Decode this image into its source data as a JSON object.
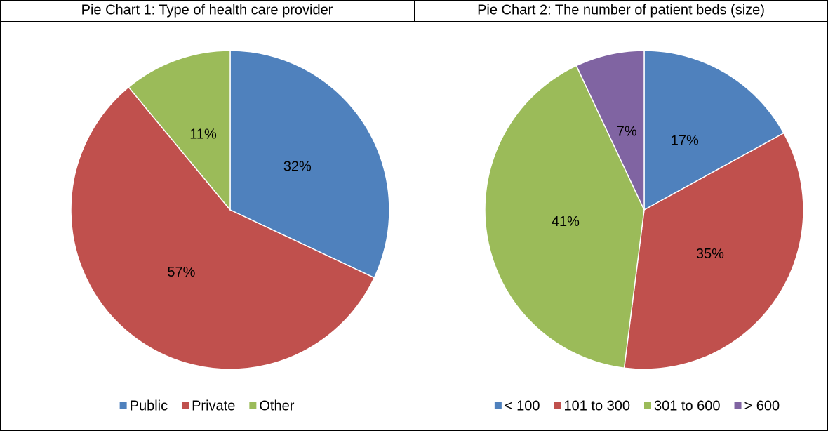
{
  "chart_data": [
    {
      "type": "pie",
      "title": "Pie Chart 1: Type of health care provider",
      "categories": [
        "Public",
        "Private",
        "Other"
      ],
      "values": [
        32,
        57,
        11
      ],
      "value_labels": [
        "32%",
        "57%",
        "11%"
      ],
      "colors": [
        "#4f81bd",
        "#c0504d",
        "#9bbb59"
      ],
      "legend": "bottom"
    },
    {
      "type": "pie",
      "title": "Pie Chart 2: The number of patient beds (size)",
      "categories": [
        "< 100",
        "101 to 300",
        "301 to 600",
        "> 600"
      ],
      "values": [
        17,
        35,
        41,
        7
      ],
      "value_labels": [
        "17%",
        "35%",
        "41%",
        "7%"
      ],
      "colors": [
        "#4f81bd",
        "#c0504d",
        "#9bbb59",
        "#8064a2"
      ],
      "legend": "bottom"
    }
  ]
}
